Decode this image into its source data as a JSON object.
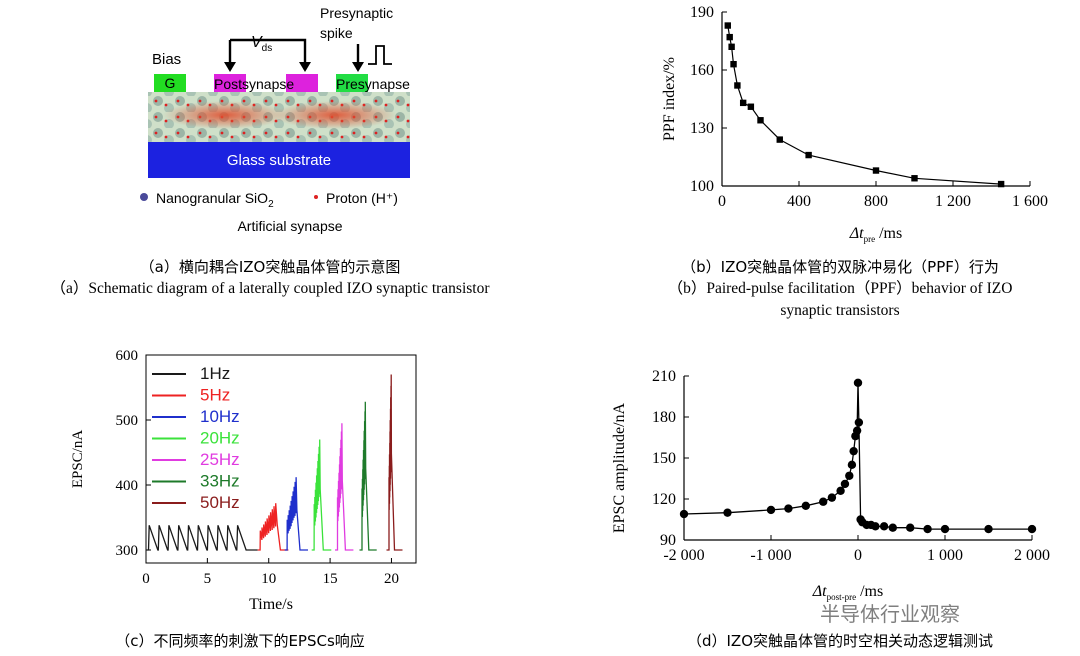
{
  "panel_a": {
    "labels": {
      "presynaptic_spike": "Presynaptic\nspike",
      "vds": "V",
      "vds_sub": "ds",
      "bias": "Bias",
      "gate": "G",
      "postsynapse": "Postsynapse",
      "presynapse": "Presynapse",
      "substrate": "Glass substrate",
      "legend_sio2": "Nanogranular SiO",
      "legend_sio2_sub": "2",
      "legend_proton": "Proton (H⁺)",
      "title": "Artificial synapse"
    },
    "caption_cn": "（a）横向耦合IZO突触晶体管的示意图",
    "caption_en": "（a）Schematic diagram of a laterally coupled IZO synaptic transistor"
  },
  "chart_data": [
    {
      "id": "b",
      "type": "line",
      "title": "",
      "xlabel": "Δt_pre /ms",
      "ylabel": "PPF index/%",
      "xlim": [
        0,
        1600
      ],
      "ylim": [
        100,
        190
      ],
      "xticks": [
        0,
        400,
        800,
        1200,
        1600
      ],
      "xtick_labels": [
        "0",
        "400",
        "800",
        "1 200",
        "1 600"
      ],
      "yticks": [
        100,
        130,
        160,
        190
      ],
      "x": [
        30,
        40,
        50,
        60,
        80,
        110,
        150,
        200,
        300,
        450,
        800,
        1000,
        1450
      ],
      "y": [
        183,
        177,
        172,
        163,
        152,
        143,
        141,
        134,
        124,
        116,
        108,
        104,
        101
      ],
      "caption_cn": "（b）IZO突触晶体管的双脉冲易化（PPF）行为",
      "caption_en": "（b）Paired-pulse facilitation（PPF）behavior of IZO synaptic transistors"
    },
    {
      "id": "c",
      "type": "line",
      "title": "",
      "xlabel": "Time/s",
      "ylabel": "EPSC/nA",
      "xlim": [
        0,
        22
      ],
      "ylim": [
        280,
        600
      ],
      "xticks": [
        0,
        5,
        10,
        15,
        20
      ],
      "yticks": [
        300,
        400,
        500,
        600
      ],
      "series": [
        {
          "name": "1Hz",
          "color": "#1a1a1a",
          "start": 0.2,
          "end": 8.2,
          "base": 300,
          "peak": 338,
          "count": 10
        },
        {
          "name": "5Hz",
          "color": "#ee2222",
          "start": 9.3,
          "end": 10.7,
          "base": 300,
          "peak": 372,
          "count": 10
        },
        {
          "name": "10Hz",
          "color": "#1f2fcc",
          "start": 11.5,
          "end": 12.3,
          "base": 300,
          "peak": 412,
          "count": 10
        },
        {
          "name": "20Hz",
          "color": "#3be23b",
          "start": 13.7,
          "end": 14.2,
          "base": 300,
          "peak": 470,
          "count": 10
        },
        {
          "name": "25Hz",
          "color": "#e03be0",
          "start": 15.6,
          "end": 16.0,
          "base": 300,
          "peak": 495,
          "count": 10
        },
        {
          "name": "33Hz",
          "color": "#1e7a2a",
          "start": 17.6,
          "end": 17.9,
          "base": 300,
          "peak": 528,
          "count": 10
        },
        {
          "name": "50Hz",
          "color": "#8a1c1c",
          "start": 19.8,
          "end": 20.0,
          "base": 300,
          "peak": 570,
          "count": 10
        }
      ],
      "caption_cn": "（c）不同频率的刺激下的EPSCs响应"
    },
    {
      "id": "d",
      "type": "line",
      "title": "",
      "xlabel": "Δt_post-pre /ms",
      "ylabel": "EPSC amplitude/nA",
      "xlim": [
        -2000,
        2000
      ],
      "ylim": [
        90,
        210
      ],
      "xticks": [
        -2000,
        -1000,
        0,
        1000,
        2000
      ],
      "xtick_labels": [
        "-2 000",
        "-1 000",
        "0",
        "1 000",
        "2 000"
      ],
      "yticks": [
        90,
        120,
        150,
        180,
        210
      ],
      "x": [
        -2000,
        -1500,
        -1000,
        -800,
        -600,
        -400,
        -300,
        -200,
        -150,
        -100,
        -70,
        -50,
        -30,
        -10,
        0,
        10,
        30,
        50,
        100,
        150,
        200,
        300,
        400,
        600,
        800,
        1000,
        1500,
        2000
      ],
      "y": [
        109,
        110,
        112,
        113,
        115,
        118,
        121,
        126,
        131,
        137,
        145,
        155,
        166,
        170,
        205,
        176,
        105,
        103,
        101,
        101,
        100,
        100,
        99,
        99,
        98,
        98,
        98,
        98
      ],
      "caption_cn": "（d）IZO突触晶体管的时空相关动态逻辑测试"
    }
  ],
  "watermark": "半导体行业观察"
}
